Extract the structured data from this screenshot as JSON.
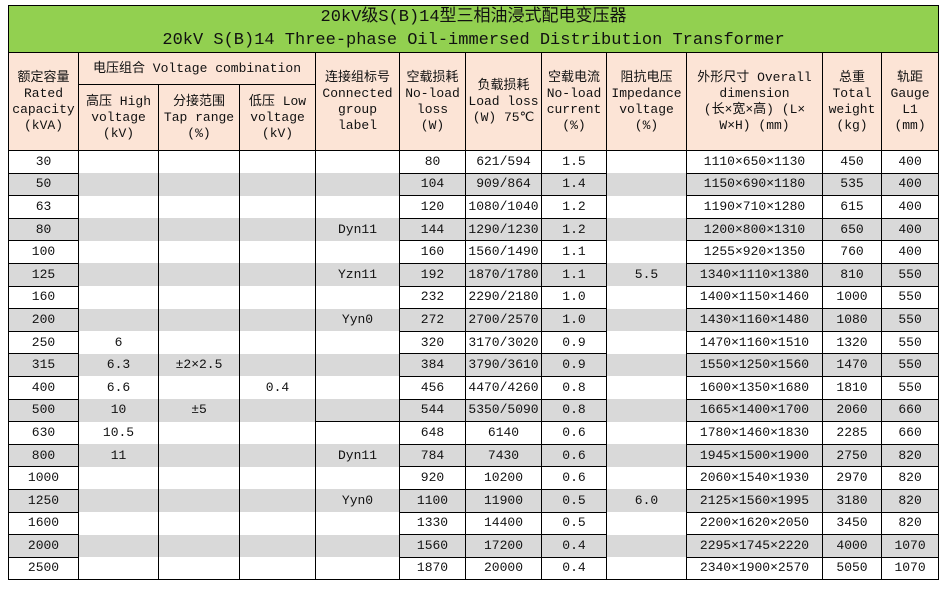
{
  "title_cn": "20kV级S(B)14型三相油浸式配电变压器",
  "title_en": "20kV S(B)14 Three-phase Oil-immersed Distribution Transformer",
  "header": {
    "capacity": [
      "额定容量",
      "Rated",
      "capacity",
      "(kVA)"
    ],
    "voltage_combination": "电压组合 Voltage combination",
    "high_voltage": [
      "高压 High",
      "voltage",
      "(kV)"
    ],
    "tap_range": [
      "分接范围",
      "Tap range",
      "(%)"
    ],
    "low_voltage": [
      "低压 Low",
      "voltage",
      "(kV)"
    ],
    "group": [
      "连接组标号",
      "Connected",
      "group",
      "label"
    ],
    "noload_loss": [
      "空载损耗",
      "No-load",
      "loss",
      "(W)"
    ],
    "load_loss": [
      "负载损耗",
      "Load loss",
      "(W) 75℃"
    ],
    "noload_current": [
      "空载电流",
      "No-load",
      "current",
      "(%)"
    ],
    "impedance": [
      "阻抗电压",
      "Impedance",
      "voltage",
      "(%)"
    ],
    "dimension": [
      "外形尺寸 Overall",
      "dimension",
      "(长×宽×高) (L×",
      "W×H) (mm)"
    ],
    "weight": [
      "总重",
      "Total",
      "weight",
      "(kg)"
    ],
    "gauge": [
      "轨距",
      "Gauge",
      "L1",
      "(mm)"
    ]
  },
  "rows": [
    {
      "capacity": "30",
      "hv": "",
      "tap": "",
      "lv": "",
      "group": "",
      "noload": "80",
      "load": "621/594",
      "current": "1.5",
      "impedance": "",
      "dimension": "1110×650×1130",
      "weight": "450",
      "gauge": "400"
    },
    {
      "capacity": "50",
      "hv": "",
      "tap": "",
      "lv": "",
      "group": "",
      "noload": "104",
      "load": "909/864",
      "current": "1.4",
      "impedance": "",
      "dimension": "1150×690×1180",
      "weight": "535",
      "gauge": "400"
    },
    {
      "capacity": "63",
      "hv": "",
      "tap": "",
      "lv": "",
      "group": "",
      "noload": "120",
      "load": "1080/1040",
      "current": "1.2",
      "impedance": "",
      "dimension": "1190×710×1280",
      "weight": "615",
      "gauge": "400"
    },
    {
      "capacity": "80",
      "hv": "",
      "tap": "",
      "lv": "",
      "group": "Dyn11",
      "noload": "144",
      "load": "1290/1230",
      "current": "1.2",
      "impedance": "",
      "dimension": "1200×800×1310",
      "weight": "650",
      "gauge": "400"
    },
    {
      "capacity": "100",
      "hv": "",
      "tap": "",
      "lv": "",
      "group": "",
      "noload": "160",
      "load": "1560/1490",
      "current": "1.1",
      "impedance": "",
      "dimension": "1255×920×1350",
      "weight": "760",
      "gauge": "400"
    },
    {
      "capacity": "125",
      "hv": "",
      "tap": "",
      "lv": "",
      "group": "Yzn11",
      "noload": "192",
      "load": "1870/1780",
      "current": "1.1",
      "impedance": "5.5",
      "dimension": "1340×1110×1380",
      "weight": "810",
      "gauge": "550"
    },
    {
      "capacity": "160",
      "hv": "",
      "tap": "",
      "lv": "",
      "group": "",
      "noload": "232",
      "load": "2290/2180",
      "current": "1.0",
      "impedance": "",
      "dimension": "1400×1150×1460",
      "weight": "1000",
      "gauge": "550"
    },
    {
      "capacity": "200",
      "hv": "",
      "tap": "",
      "lv": "",
      "group": "Yyn0",
      "noload": "272",
      "load": "2700/2570",
      "current": "1.0",
      "impedance": "",
      "dimension": "1430×1160×1480",
      "weight": "1080",
      "gauge": "550"
    },
    {
      "capacity": "250",
      "hv": "6",
      "tap": "",
      "lv": "",
      "group": "",
      "noload": "320",
      "load": "3170/3020",
      "current": "0.9",
      "impedance": "",
      "dimension": "1470×1160×1510",
      "weight": "1320",
      "gauge": "550"
    },
    {
      "capacity": "315",
      "hv": "6.3",
      "tap": "±2×2.5",
      "lv": "",
      "group": "",
      "noload": "384",
      "load": "3790/3610",
      "current": "0.9",
      "impedance": "",
      "dimension": "1550×1250×1560",
      "weight": "1470",
      "gauge": "550"
    },
    {
      "capacity": "400",
      "hv": "6.6",
      "tap": "",
      "lv": "0.4",
      "group": "",
      "noload": "456",
      "load": "4470/4260",
      "current": "0.8",
      "impedance": "",
      "dimension": "1600×1350×1680",
      "weight": "1810",
      "gauge": "550"
    },
    {
      "capacity": "500",
      "hv": "10",
      "tap": "±5",
      "lv": "",
      "group": "",
      "noload": "544",
      "load": "5350/5090",
      "current": "0.8",
      "impedance": "",
      "dimension": "1665×1400×1700",
      "weight": "2060",
      "gauge": "660"
    },
    {
      "capacity": "630",
      "hv": "10.5",
      "tap": "",
      "lv": "",
      "group": "",
      "noload": "648",
      "load": "6140",
      "current": "0.6",
      "impedance": "",
      "dimension": "1780×1460×1830",
      "weight": "2285",
      "gauge": "660"
    },
    {
      "capacity": "800",
      "hv": "11",
      "tap": "",
      "lv": "",
      "group": "Dyn11",
      "noload": "784",
      "load": "7430",
      "current": "0.6",
      "impedance": "",
      "dimension": "1945×1500×1900",
      "weight": "2750",
      "gauge": "820"
    },
    {
      "capacity": "1000",
      "hv": "",
      "tap": "",
      "lv": "",
      "group": "",
      "noload": "920",
      "load": "10200",
      "current": "0.6",
      "impedance": "",
      "dimension": "2060×1540×1930",
      "weight": "2970",
      "gauge": "820"
    },
    {
      "capacity": "1250",
      "hv": "",
      "tap": "",
      "lv": "",
      "group": "Yyn0",
      "noload": "1100",
      "load": "11900",
      "current": "0.5",
      "impedance": "6.0",
      "dimension": "2125×1560×1995",
      "weight": "3180",
      "gauge": "820"
    },
    {
      "capacity": "1600",
      "hv": "",
      "tap": "",
      "lv": "",
      "group": "",
      "noload": "1330",
      "load": "14400",
      "current": "0.5",
      "impedance": "",
      "dimension": "2200×1620×2050",
      "weight": "3450",
      "gauge": "820"
    },
    {
      "capacity": "2000",
      "hv": "",
      "tap": "",
      "lv": "",
      "group": "",
      "noload": "1560",
      "load": "17200",
      "current": "0.4",
      "impedance": "",
      "dimension": "2295×1745×2220",
      "weight": "4000",
      "gauge": "1070"
    },
    {
      "capacity": "2500",
      "hv": "",
      "tap": "",
      "lv": "",
      "group": "",
      "noload": "1870",
      "load": "20000",
      "current": "0.4",
      "impedance": "",
      "dimension": "2340×1900×2570",
      "weight": "5050",
      "gauge": "1070"
    }
  ],
  "colors": {
    "title_bg": "#92d050",
    "header_bg": "#fce4d6",
    "stripe": "#d9d9d9"
  }
}
